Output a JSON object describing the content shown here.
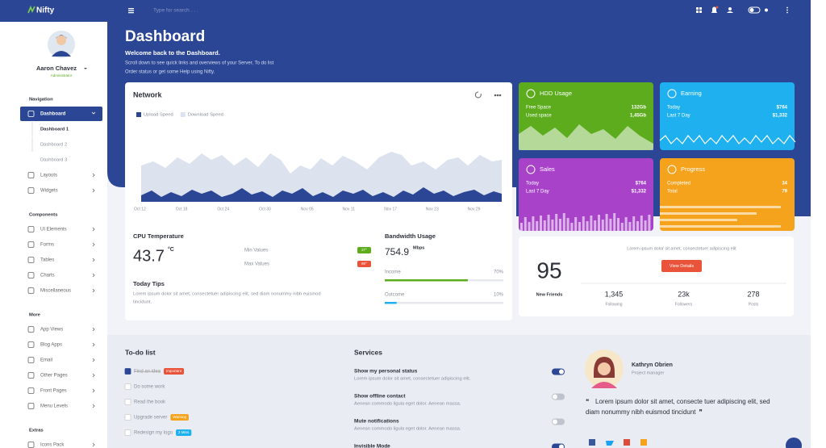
{
  "topbar": {
    "brand": "Nifty",
    "search_placeholder": "Type for search . . ."
  },
  "sidebar": {
    "user": {
      "name": "Aaron Chavez",
      "role": "Administrator"
    },
    "sections": [
      {
        "title": "Navigation",
        "items": [
          {
            "label": "Dashboard",
            "active": true,
            "children": [
              "Dashboard 1",
              "Dashboard 2",
              "Dashboard 3"
            ]
          },
          {
            "label": "Layouts"
          },
          {
            "label": "Widgets"
          }
        ]
      },
      {
        "title": "Components",
        "items": [
          {
            "label": "UI Elements"
          },
          {
            "label": "Forms"
          },
          {
            "label": "Tables"
          },
          {
            "label": "Charts"
          },
          {
            "label": "Miscellaneous"
          }
        ]
      },
      {
        "title": "More",
        "items": [
          {
            "label": "App Views"
          },
          {
            "label": "Blog Apps"
          },
          {
            "label": "Email"
          },
          {
            "label": "Other Pages"
          },
          {
            "label": "Front Pages"
          },
          {
            "label": "Menu Levels"
          }
        ]
      },
      {
        "title": "Extras",
        "items": [
          {
            "label": "Icons Pack"
          }
        ]
      }
    ]
  },
  "header": {
    "title": "Dashboard",
    "welcome": "Welcome back to the Dashboard.",
    "description": [
      "Scroll down to see quick links and overviews of your Server, To do list",
      "Order status or get some Help using Nifty."
    ]
  },
  "network": {
    "title": "Network",
    "legend": [
      {
        "name": "Upload Speed",
        "color": "#2b4695"
      },
      {
        "name": "Download Speed",
        "color": "#dce2ee"
      }
    ],
    "x_labels": [
      "Oct 12",
      "Oct 18",
      "Oct 24",
      "Oct 30",
      "Nov 05",
      "Nov 11",
      "Nov 17",
      "Nov 23",
      "Nov 29"
    ]
  },
  "cpu": {
    "title": "CPU Temperature",
    "value": "43.7",
    "unit": "°C",
    "min_label": "Min Values",
    "min_badge": "27°",
    "max_label": "Max Values",
    "max_badge": "80°",
    "tips_title": "Today Tips",
    "tips_text": [
      "Lorem ipsum dolor sit amet, consectetuer adipiscing elit, sed diam nonummy nibh euismod",
      "tincidunt."
    ]
  },
  "bandwidth": {
    "title": "Bandwidth Usage",
    "value": "754.9",
    "unit": "Mbps",
    "bars": [
      {
        "label": "Income",
        "percent": "70%",
        "color": "#5cac1d"
      },
      {
        "label": "Outcome",
        "percent": "10%",
        "color": "#1fb1ef"
      }
    ]
  },
  "stat_cards": [
    {
      "title": "HDD Usage",
      "color": "#5cac1d",
      "rows": [
        {
          "label": "Free Space",
          "value": "132Gb"
        },
        {
          "label": "Used space",
          "value": "1,45Gb"
        }
      ]
    },
    {
      "title": "Earning",
      "color": "#1fb1ef",
      "rows": [
        {
          "label": "Today",
          "value": "$764"
        },
        {
          "label": "Last 7 Day",
          "value": "$1,332"
        }
      ]
    },
    {
      "title": "Sales",
      "color": "#a742c9",
      "rows": [
        {
          "label": "Today",
          "value": "$764"
        },
        {
          "label": "Last 7 Day",
          "value": "$1,332"
        }
      ]
    },
    {
      "title": "Progress",
      "color": "#f5a21c",
      "rows": [
        {
          "label": "Completed",
          "value": "34"
        },
        {
          "label": "Total",
          "value": "79"
        }
      ]
    }
  ],
  "friends": {
    "note": "Lorem ipsum dolor sit amet, consectetuer adipiscing elit",
    "button": "View Details",
    "count": "95",
    "count_label": "New Friends",
    "stats": [
      {
        "value": "1,345",
        "label": "Following"
      },
      {
        "value": "23k",
        "label": "Followers"
      },
      {
        "value": "278",
        "label": "Posts"
      }
    ]
  },
  "todo": {
    "title": "To-do list",
    "items": [
      {
        "text": "Find an idea",
        "done": true,
        "badge": "Important",
        "badge_color": "#e8533a"
      },
      {
        "text": "Do some work"
      },
      {
        "text": "Read the book"
      },
      {
        "text": "Upgrade server",
        "badge": "Warning",
        "badge_color": "#f5a21c"
      },
      {
        "text": "Redesign my logo",
        "badge": "2 Mins",
        "badge_color": "#1fb1ef"
      }
    ]
  },
  "services": {
    "title": "Services",
    "items": [
      {
        "title": "Show my personal status",
        "text": "Lorem ipsum dolor sit amet, consectetuer adipiscing elit.",
        "on": true
      },
      {
        "title": "Show offline contact",
        "text": "Aenean commodo ligula eget dolor. Aenean massa.",
        "on": false
      },
      {
        "title": "Mute notifications",
        "text": "Aenean commodo ligula eget dolor. Aenean massa.",
        "on": false
      },
      {
        "title": "Invisible Mode",
        "on": true
      }
    ]
  },
  "profile": {
    "name": "Kathryn Obrien",
    "role": "Project manager",
    "quote_marks": [
      "❝",
      "❞"
    ],
    "quote": [
      "Lorem ipsum dolor sit amet, consecte tuer adipiscing elit, sed",
      "diam nonummy nibh euismod tincidunt"
    ]
  }
}
